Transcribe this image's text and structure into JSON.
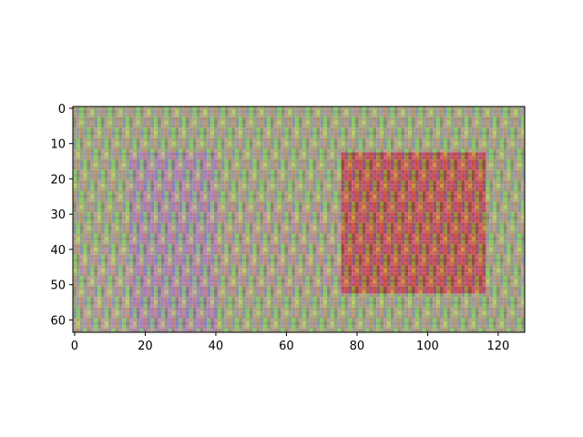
{
  "chart_data": {
    "type": "heatmap",
    "title": "",
    "xlabel": "",
    "ylabel": "",
    "image_shape": [
      64,
      128
    ],
    "xlim": [
      -0.5,
      127.5
    ],
    "ylim": [
      63.5,
      -0.5
    ],
    "x_ticks": [
      0,
      20,
      40,
      60,
      80,
      100,
      120
    ],
    "x_tick_labels": [
      "0",
      "20",
      "40",
      "60",
      "80",
      "100",
      "120"
    ],
    "y_ticks": [
      0,
      10,
      20,
      30,
      40,
      50,
      60
    ],
    "y_tick_labels": [
      "0",
      "10",
      "20",
      "30",
      "40",
      "50",
      "60"
    ],
    "grid": false,
    "colorbar": false,
    "base_color": "#9bb07a",
    "regions": [
      {
        "name": "purple-block",
        "x_range": [
          16,
          40
        ],
        "y_range": [
          13,
          63
        ],
        "color": "#a86fd0"
      },
      {
        "name": "left-soft-block",
        "x_range": [
          2,
          16
        ],
        "y_range": [
          40,
          63
        ],
        "color": "#b7a6a6"
      },
      {
        "name": "middle-soft-block",
        "x_range": [
          40,
          77
        ],
        "y_range": [
          28,
          52
        ],
        "color": "#b89690"
      },
      {
        "name": "red-block",
        "x_range": [
          76,
          116
        ],
        "y_range": [
          13,
          52
        ],
        "color": "#c81818"
      }
    ],
    "texture_colors": [
      "#ff5a5a",
      "#f0ff45",
      "#62ff3a",
      "#b85cff",
      "#ff7ad7",
      "#5c62ff",
      "#8d8d8d",
      "#4e4e4e"
    ]
  }
}
